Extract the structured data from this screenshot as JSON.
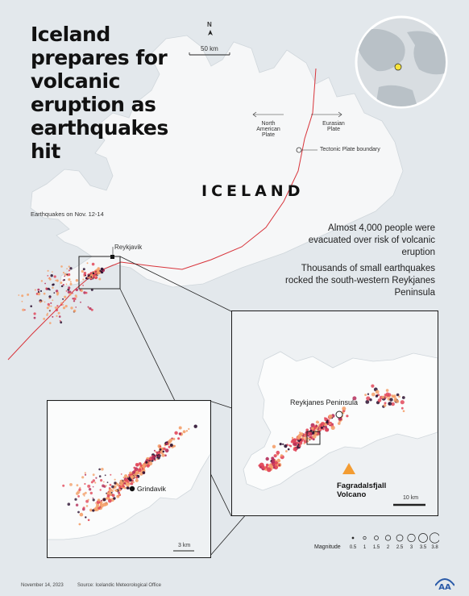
{
  "title_lines": [
    "Iceland",
    "prepares for",
    "volcanic",
    "eruption as",
    "earthquakes",
    "hit"
  ],
  "country_label": "ICELAND",
  "scale_main": "50 km",
  "scale_inset_large": "10 km",
  "scale_inset_small": "3 km",
  "north_label": "N",
  "plates": {
    "north_american": [
      "North",
      "American",
      "Plate"
    ],
    "eurasian": [
      "Eurasian",
      "Plate"
    ],
    "boundary_label": "Tectonic Plate boundary"
  },
  "quake_dates_label": "Earthquakes on Nov. 12-14",
  "places": {
    "reykjavik": "Reykjavik",
    "peninsula": "Reykjanes Peninsula",
    "grindavik": "Grindavik",
    "volcano_lines": [
      "Fagradalsfjall",
      "Volcano"
    ]
  },
  "stats": {
    "evacuated_lines": [
      "Almost 4,000 people were",
      "evacuated over risk of volcanic",
      "eruption"
    ],
    "quakes_lines": [
      "Thousands of small earthquakes",
      "rocked the south-western Reykjanes",
      "Peninsula"
    ]
  },
  "legend": {
    "title": "Magnitude",
    "values": [
      "0.5",
      "1",
      "1.5",
      "2",
      "2.5",
      "3",
      "3.5",
      "3.8"
    ]
  },
  "footer": {
    "date": "November 14, 2023",
    "source": "Source: Icelandic Meteorological Office"
  },
  "logo_text": "AA",
  "colors": {
    "boundary": "#d8343b",
    "low": "#f4a06a",
    "mid": "#e2485a",
    "high": "#2b1030",
    "land": "#f6f7f8",
    "sea": "#e3e8ec",
    "volcano": "#f39c32"
  }
}
